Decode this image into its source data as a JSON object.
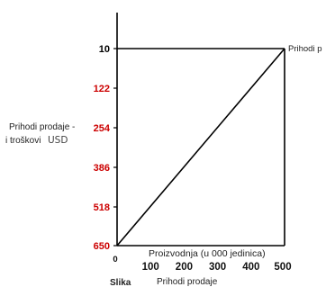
{
  "chart_data": {
    "type": "line",
    "x": [
      0,
      100,
      200,
      300,
      400,
      500
    ],
    "x_tick_labels": [
      "0",
      "100",
      "200",
      "300",
      "400",
      "500"
    ],
    "xlabel": "Proizvodnja (u 000 jedinica)",
    "ylabel_line1": "Prihodi prodaje -",
    "ylabel_line2": "i troškovi",
    "ylabel_unit": "USD",
    "y_tick_labels": [
      "10",
      "122",
      "254",
      "386",
      "518",
      "650"
    ],
    "y_tick_colors": [
      "#000000",
      "#cc0000",
      "#cc0000",
      "#cc0000",
      "#cc0000",
      "#cc0000"
    ],
    "xlim": [
      0,
      500
    ],
    "series": [
      {
        "name": "Prihodi p",
        "x": [
          0,
          500
        ],
        "y": [
          650,
          10
        ]
      }
    ],
    "caption_left": "Slika",
    "caption_right": "Prihodi prodaje",
    "grid": false
  }
}
